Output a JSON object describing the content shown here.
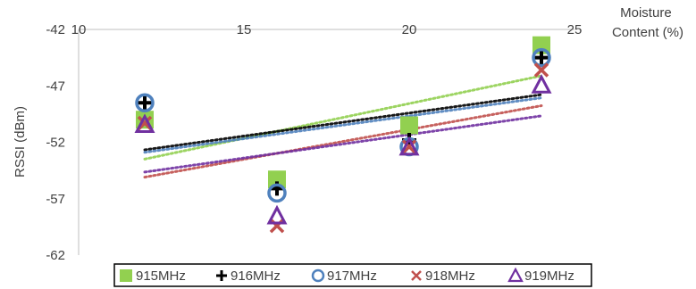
{
  "chart_data": {
    "type": "scatter",
    "title": "",
    "xlabel": "Moisture Content (%)",
    "xlabel_lines": [
      "Moisture",
      "Content (%)"
    ],
    "ylabel": "RSSI (dBm)",
    "xlim": [
      10,
      25
    ],
    "ylim": [
      -62,
      -42
    ],
    "xticks": [
      10,
      15,
      20,
      25
    ],
    "yticks": [
      -42,
      -47,
      -52,
      -57,
      -62
    ],
    "x_axis_position": "top",
    "gridlines": false,
    "trendlines": "linear, dotted",
    "legend_position": "bottom",
    "x": [
      12,
      16,
      20,
      24
    ],
    "series": [
      {
        "name": "915MHz",
        "marker": "square",
        "color": "#92d050",
        "values": [
          -50.0,
          -55.3,
          -50.5,
          -43.4
        ]
      },
      {
        "name": "916MHz",
        "marker": "plus",
        "color": "#000000",
        "values": [
          -48.5,
          -56.1,
          -51.8,
          -44.5
        ]
      },
      {
        "name": "917MHz",
        "marker": "circle",
        "color": "#4f81bd",
        "values": [
          -48.5,
          -56.5,
          -52.4,
          -44.5
        ]
      },
      {
        "name": "918MHz",
        "marker": "x",
        "color": "#c0504d",
        "values": [
          -50.3,
          -59.4,
          -52.4,
          -45.6
        ]
      },
      {
        "name": "919MHz",
        "marker": "triangle",
        "color": "#7030a0",
        "values": [
          -50.5,
          -58.6,
          -52.5,
          -47.0
        ]
      }
    ]
  }
}
